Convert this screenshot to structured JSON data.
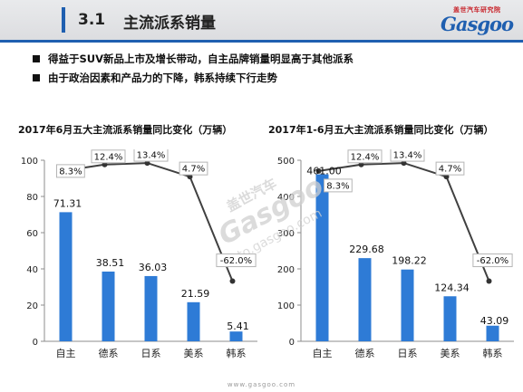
{
  "header": {
    "section_number": "3.1",
    "section_title": "主流派系销量",
    "logo_subtitle": "盖世汽车研究院",
    "logo_text": "Gasgoo"
  },
  "bullets": [
    "得益于SUV新品上市及增长带动，自主品牌销量明显高于其他派系",
    "由于政治因素和产品力的下降，韩系持续下行走势"
  ],
  "watermark": {
    "brand": "盖世汽车",
    "logo": "Gasgoo",
    "url": "auto.gasgoo.com"
  },
  "footer": {
    "url": "www.gasgoo.com"
  },
  "colors": {
    "accent": "#1f5fb0",
    "bar": "#2e7bd6",
    "line": "#404040",
    "label_box": "#b5b5b5"
  },
  "chart_data": [
    {
      "type": "bar",
      "title": "2017年6月五大主流派系销量同比变化（万辆）",
      "categories": [
        "自主",
        "德系",
        "日系",
        "美系",
        "韩系"
      ],
      "series": [
        {
          "type": "bar",
          "values": [
            71.31,
            38.51,
            36.03,
            21.59,
            5.41
          ]
        },
        {
          "type": "line",
          "values": [
            8.3,
            12.4,
            13.4,
            4.7,
            -62.0
          ]
        }
      ],
      "value_labels": [
        "71.31",
        "38.51",
        "36.03",
        "21.59",
        "5.41"
      ],
      "growth_labels": [
        "8.3%",
        "12.4%",
        "13.4%",
        "4.7%",
        "-62.0%"
      ],
      "ylim": [
        0,
        100
      ],
      "yticks": [
        "0",
        "20",
        "40",
        "60",
        "80",
        "100"
      ],
      "grid": false
    },
    {
      "type": "bar",
      "title": "2017年1-6月五大主流派系销量同比变化（万辆）",
      "categories": [
        "自主",
        "德系",
        "日系",
        "美系",
        "韩系"
      ],
      "series": [
        {
          "type": "bar",
          "values": [
            461.0,
            229.68,
            198.22,
            124.34,
            43.09
          ]
        },
        {
          "type": "line",
          "values": [
            8.3,
            12.4,
            13.4,
            4.7,
            -62.0
          ]
        }
      ],
      "value_labels": [
        "461.00",
        "229.68",
        "198.22",
        "124.34",
        "43.09"
      ],
      "growth_labels": [
        "8.3%",
        "12.4%",
        "13.4%",
        "4.7%",
        "-62.0%"
      ],
      "ylim": [
        0,
        500
      ],
      "yticks": [
        "0",
        "100",
        "200",
        "300",
        "400",
        "500"
      ],
      "grid": false
    }
  ]
}
